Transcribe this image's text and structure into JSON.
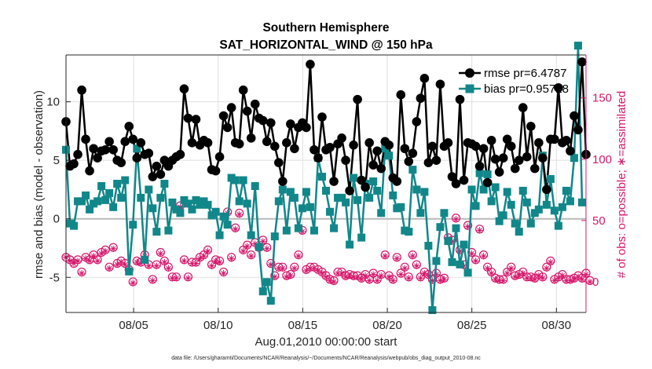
{
  "chart_data": {
    "type": "line",
    "title": "Southern Hemisphere",
    "subtitle": "SAT_HORIZONTAL_WIND @ 150 hPa",
    "xlabel": "Aug.01,2010 00:00:00 start",
    "ylabel": "rmse and bias (model - observation)",
    "ylabel_right": "# of obs: o=possible; ∗=assimilated",
    "footnote": "data file: /Users/gharamti/Documents/NCAR/Reanalysis/~/Documents/NCAR/Reanalysis/webpub/obs_diag_output_2010-08.nc",
    "x_range_days": [
      1,
      31.75
    ],
    "ylim": [
      -8,
      14
    ],
    "ylim_right": [
      -25,
      185
    ],
    "x_ticks": [
      {
        "day": 5,
        "label": "08/05"
      },
      {
        "day": 10,
        "label": "08/10"
      },
      {
        "day": 15,
        "label": "08/15"
      },
      {
        "day": 20,
        "label": "08/20"
      },
      {
        "day": 25,
        "label": "08/25"
      },
      {
        "day": 30,
        "label": "08/30"
      }
    ],
    "y_ticks": [
      {
        "v": -5,
        "label": "-5"
      },
      {
        "v": 0,
        "label": "0"
      },
      {
        "v": 5,
        "label": "5"
      },
      {
        "v": 10,
        "label": "10"
      }
    ],
    "y_ticks_right": [
      {
        "v": 0,
        "label": "0"
      },
      {
        "v": 50,
        "label": "50"
      },
      {
        "v": 100,
        "label": "100"
      },
      {
        "v": 150,
        "label": "150"
      }
    ],
    "zero_line": true,
    "legend_placement": "top-right",
    "series": [
      {
        "name": "rmse pr=6.4787",
        "color": "#000000",
        "marker": "circle",
        "axis": "left",
        "values": [
          8.3,
          4.5,
          4.7,
          5.5,
          11.0,
          6.8,
          4.1,
          6.0,
          5.2,
          5.8,
          5.9,
          6.6,
          5.9,
          5.0,
          4.8,
          6.6,
          7.9,
          6.8,
          5.2,
          6.5,
          5.5,
          5.6,
          3.6,
          4.5,
          3.8,
          5.0,
          4.5,
          5.0,
          5.3,
          5.5,
          11.1,
          8.6,
          6.5,
          8.5,
          6.3,
          6.7,
          6.5,
          4.2,
          4.1,
          5.3,
          8.8,
          7.8,
          9.5,
          6.5,
          6.4,
          11.0,
          9.2,
          6.9,
          9.8,
          8.6,
          8.4,
          6.6,
          8.2,
          6.2,
          4.8,
          3.2,
          6.5,
          8.1,
          6.0,
          7.8,
          8.2,
          7.8,
          13.2,
          5.9,
          5.2,
          8.7,
          5.9,
          6.1,
          3.2,
          6.4,
          6.9,
          5.0,
          2.4,
          6.3,
          10.2,
          3.3,
          2.7,
          6.5,
          4.6,
          5.8,
          4.3,
          6.6,
          6.3,
          3.5,
          3.2,
          10.6,
          6.0,
          4.9,
          5.6,
          8.3,
          10.3,
          12.0,
          4.8,
          6.2,
          5.0,
          11.5,
          6.2,
          6.5,
          3.6,
          3.0,
          10.2,
          3.3,
          6.5,
          6.4,
          6.2,
          4.5,
          6.0,
          3.1,
          6.7,
          5.1,
          4.0,
          5.2,
          6.8,
          6.2,
          4.3,
          5.0,
          9.5,
          5.3,
          7.9,
          4.3,
          6.5,
          5.2,
          2.5,
          6.8,
          6.8,
          11.2,
          6.5,
          6.7,
          5.8,
          8.8,
          7.6,
          13.4,
          5.5
        ],
        "color_label": "#000000"
      },
      {
        "name": "bias pr=0.95728",
        "color": "#11878a",
        "marker": "square",
        "axis": "left",
        "values": [
          5.9,
          -0.4,
          -0.6,
          1.5,
          1.5,
          2.0,
          0.8,
          1.3,
          1.5,
          2.8,
          1.6,
          2.2,
          1.0,
          3.0,
          1.8,
          3.3,
          -4.5,
          -0.5,
          6.0,
          1.8,
          -3.5,
          2.5,
          0.9,
          -1.1,
          1.8,
          3.0,
          -1.0,
          1.4,
          0.8,
          0.5,
          1.6,
          1.3,
          0.8,
          1.6,
          1.2,
          1.5,
          1.2,
          0.3,
          0.6,
          -1.4,
          0.2,
          -0.5,
          3.5,
          3.3,
          1.5,
          3.3,
          1.3,
          -1.4,
          2.8,
          -2.4,
          -6.2,
          -5.4,
          -7.0,
          -1.5,
          1.5,
          2.5,
          -1.0,
          2.3,
          1.8,
          -0.8,
          0.9,
          2.3,
          1.0,
          -1.0,
          5.2,
          3.6,
          2.4,
          0.6,
          -0.8,
          1.8,
          1.8,
          1.4,
          -2.2,
          3.5,
          1.6,
          -1.6,
          3.0,
          1.8,
          3.2,
          2.4,
          0.5,
          6.0,
          5.4,
          2.0,
          0.9,
          1.0,
          -1.0,
          -1.1,
          4.2,
          2.5,
          0.5,
          2.3,
          -2.3,
          -7.8,
          -3.6,
          -0.7,
          0.5,
          -1.9,
          -3.7,
          -0.8,
          -3.9,
          -2.2,
          -4.6,
          2.5,
          1.1,
          3.9,
          2.5,
          3.8,
          1.5,
          2.7,
          -0.2,
          0.3,
          2.3,
          1.2,
          -0.4,
          -1.1,
          2.4,
          1.4,
          -0.4,
          0.5,
          0.8,
          5.4,
          1.2,
          3.4,
          0.7,
          -0.6,
          1.0,
          2.4,
          1.5,
          5.2,
          14.8,
          1.4
        ],
        "color_label": "#11878a"
      },
      {
        "name": "# of obs possible",
        "color": "#d6186c",
        "marker": "circle-open",
        "axis": "right",
        "values": [
          20,
          18,
          15,
          18,
          8,
          20,
          18,
          22,
          18,
          24,
          26,
          12,
          28,
          15,
          17,
          15,
          10,
          0,
          17,
          16,
          22,
          14,
          2,
          14,
          24,
          17,
          12,
          4,
          4,
          62,
          18,
          4,
          16,
          16,
          20,
          22,
          26,
          14,
          18,
          17,
          8,
          57,
          20,
          44,
          56,
          26,
          30,
          22,
          32,
          28,
          34,
          28,
          15,
          5,
          12,
          12,
          5,
          6,
          12,
          22,
          42,
          10,
          12,
          12,
          10,
          8,
          5,
          2,
          1,
          8,
          8,
          5,
          6,
          5,
          5,
          3,
          6,
          2,
          7,
          2,
          6,
          22,
          5,
          2,
          20,
          7,
          12,
          4,
          22,
          14,
          4,
          8,
          6,
          2,
          7,
          2,
          3,
          36,
          34,
          52,
          26,
          14,
          46,
          24,
          18,
          43,
          22,
          12,
          8,
          3,
          2,
          2,
          8,
          12,
          5,
          6,
          8,
          4,
          4,
          3,
          6,
          4,
          12,
          17,
          2,
          4,
          6,
          2,
          2,
          3,
          5,
          3,
          7,
          1
        ]
      },
      {
        "name": "# of obs assimilated",
        "color": "#d6186c",
        "marker": "asterisk",
        "axis": "right",
        "values": [
          20,
          17,
          15,
          17,
          7,
          19,
          17,
          21,
          17,
          23,
          25,
          11,
          27,
          14,
          16,
          14,
          9,
          -1,
          16,
          15,
          21,
          13,
          1,
          13,
          23,
          16,
          11,
          3,
          3,
          61,
          17,
          3,
          15,
          15,
          19,
          21,
          25,
          13,
          17,
          16,
          7,
          56,
          19,
          43,
          55,
          25,
          29,
          21,
          31,
          27,
          33,
          27,
          14,
          4,
          11,
          11,
          4,
          5,
          11,
          21,
          41,
          9,
          11,
          11,
          9,
          7,
          4,
          1,
          0,
          7,
          7,
          4,
          5,
          4,
          4,
          2,
          5,
          1,
          6,
          1,
          5,
          21,
          4,
          1,
          19,
          6,
          11,
          3,
          21,
          13,
          3,
          7,
          5,
          1,
          6,
          1,
          2,
          35,
          33,
          51,
          25,
          13,
          45,
          23,
          17,
          42,
          21,
          11,
          7,
          2,
          1,
          1,
          7,
          11,
          4,
          5,
          7,
          3,
          3,
          2,
          5,
          3,
          11,
          16,
          1,
          3,
          5,
          1,
          1,
          2,
          4,
          2,
          6,
          0
        ]
      }
    ]
  }
}
